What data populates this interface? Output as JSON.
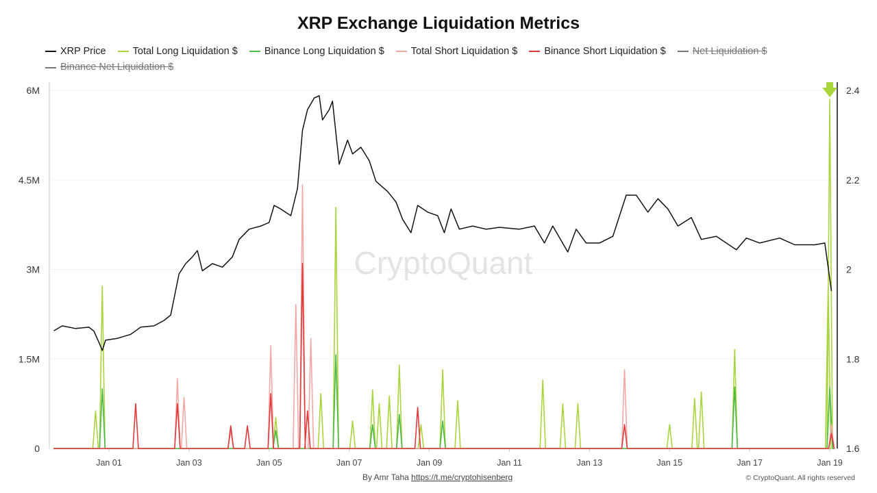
{
  "chart_data": {
    "type": "line",
    "title": "XRP Exchange Liquidation Metrics",
    "legend_position": "top",
    "grid": true,
    "left_axis": {
      "range": [
        0,
        6000000
      ],
      "ticks": [
        "0",
        "1.5M",
        "3M",
        "4.5M",
        "6M"
      ]
    },
    "right_axis": {
      "range": [
        1.6,
        2.4
      ],
      "ticks": [
        "1.6",
        "1.8",
        "2",
        "2.2",
        "2.4"
      ]
    },
    "x_axis": {
      "ticks": [
        "Jan 01",
        "Jan 03",
        "Jan 05",
        "Jan 07",
        "Jan 09",
        "Jan 11",
        "Jan 13",
        "Jan 15",
        "Jan 17",
        "Jan 19"
      ]
    },
    "series": [
      {
        "name": "XRP Price",
        "color": "#111111",
        "axis": "right",
        "hidden": false,
        "points": [
          [
            "12-30 15:00",
            1.863
          ],
          [
            "12-30 20:00",
            1.874
          ],
          [
            "12-31 04:00",
            1.868
          ],
          [
            "12-31 12:00",
            1.871
          ],
          [
            "12-31 15:00",
            1.862
          ],
          [
            "12-31 18:00",
            1.837
          ],
          [
            "12-31 20:00",
            1.819
          ],
          [
            "12-31 22:00",
            1.842
          ],
          [
            "01-01 05:00",
            1.846
          ],
          [
            "01-01 13:00",
            1.855
          ],
          [
            "01-01 19:00",
            1.871
          ],
          [
            "01-02 03:00",
            1.874
          ],
          [
            "01-02 09:00",
            1.886
          ],
          [
            "01-02 13:00",
            1.898
          ],
          [
            "01-02 18:00",
            1.99
          ],
          [
            "01-02 22:00",
            2.013
          ],
          [
            "01-03 02:00",
            2.028
          ],
          [
            "01-03 05:00",
            2.042
          ],
          [
            "01-03 08:00",
            1.997
          ],
          [
            "01-03 14:00",
            2.013
          ],
          [
            "01-03 20:00",
            2.005
          ],
          [
            "01-04 02:00",
            2.028
          ],
          [
            "01-04 06:00",
            2.067
          ],
          [
            "01-04 12:00",
            2.09
          ],
          [
            "01-04 19:00",
            2.097
          ],
          [
            "01-05 00:00",
            2.105
          ],
          [
            "01-05 03:00",
            2.143
          ],
          [
            "01-05 07:00",
            2.135
          ],
          [
            "01-05 13:00",
            2.12
          ],
          [
            "01-05 17:00",
            2.181
          ],
          [
            "01-05 20:00",
            2.311
          ],
          [
            "01-05 23:00",
            2.357
          ],
          [
            "01-06 03:00",
            2.383
          ],
          [
            "01-06 06:00",
            2.388
          ],
          [
            "01-06 08:00",
            2.334
          ],
          [
            "01-06 12:00",
            2.357
          ],
          [
            "01-06 14:00",
            2.376
          ],
          [
            "01-06 18:00",
            2.235
          ],
          [
            "01-06 23:00",
            2.289
          ],
          [
            "01-07 02:00",
            2.258
          ],
          [
            "01-07 07:00",
            2.273
          ],
          [
            "01-07 12:00",
            2.243
          ],
          [
            "01-07 16:00",
            2.197
          ],
          [
            "01-07 23:00",
            2.174
          ],
          [
            "01-08 04:00",
            2.151
          ],
          [
            "01-08 08:00",
            2.112
          ],
          [
            "01-08 13:00",
            2.082
          ],
          [
            "01-08 17:00",
            2.143
          ],
          [
            "01-08 23:00",
            2.128
          ],
          [
            "01-09 05:00",
            2.12
          ],
          [
            "01-09 09:00",
            2.082
          ],
          [
            "01-09 13:00",
            2.135
          ],
          [
            "01-09 18:00",
            2.09
          ],
          [
            "01-10 02:00",
            2.097
          ],
          [
            "01-10 10:00",
            2.09
          ],
          [
            "01-10 18:00",
            2.094
          ],
          [
            "01-11 06:00",
            2.09
          ],
          [
            "01-11 15:00",
            2.097
          ],
          [
            "01-11 21:00",
            2.059
          ],
          [
            "01-12 02:00",
            2.097
          ],
          [
            "01-12 11:00",
            2.039
          ],
          [
            "01-12 16:00",
            2.09
          ],
          [
            "01-12 22:00",
            2.059
          ],
          [
            "01-13 06:00",
            2.059
          ],
          [
            "01-13 14:00",
            2.074
          ],
          [
            "01-13 22:00",
            2.166
          ],
          [
            "01-14 04:00",
            2.166
          ],
          [
            "01-14 11:00",
            2.128
          ],
          [
            "01-14 17:00",
            2.158
          ],
          [
            "01-14 23:00",
            2.135
          ],
          [
            "01-15 05:00",
            2.097
          ],
          [
            "01-15 13:00",
            2.116
          ],
          [
            "01-15 19:00",
            2.067
          ],
          [
            "01-16 04:00",
            2.074
          ],
          [
            "01-16 16:00",
            2.044
          ],
          [
            "01-16 22:00",
            2.07
          ],
          [
            "01-17 06:00",
            2.059
          ],
          [
            "01-17 18:00",
            2.07
          ],
          [
            "01-18 03:00",
            2.055
          ],
          [
            "01-18 15:00",
            2.055
          ],
          [
            "01-18 21:00",
            2.059
          ],
          [
            "01-19 01:00",
            1.952
          ]
        ]
      },
      {
        "name": "Total Long Liquidation $",
        "color": "#a8d43c",
        "axis": "left",
        "hidden": false,
        "points": [
          [
            "12-31 16:00",
            630000
          ],
          [
            "12-31 20:00",
            2720000
          ],
          [
            "01-05 04:00",
            520000
          ],
          [
            "01-06 07:00",
            920000
          ],
          [
            "01-06 16:00",
            4040000
          ],
          [
            "01-07 02:00",
            460000
          ],
          [
            "01-07 14:00",
            980000
          ],
          [
            "01-07 18:00",
            750000
          ],
          [
            "01-08 00:00",
            880000
          ],
          [
            "01-08 06:00",
            1400000
          ],
          [
            "01-08 19:00",
            400000
          ],
          [
            "01-09 08:00",
            1320000
          ],
          [
            "01-09 17:00",
            800000
          ],
          [
            "01-11 20:00",
            1150000
          ],
          [
            "01-12 08:00",
            750000
          ],
          [
            "01-12 17:00",
            750000
          ],
          [
            "01-15 00:00",
            400000
          ],
          [
            "01-15 15:00",
            840000
          ],
          [
            "01-15 19:00",
            950000
          ],
          [
            "01-16 15:00",
            1660000
          ],
          [
            "01-18 23:00",
            2700000
          ],
          [
            "01-19 00:00",
            5850000
          ]
        ]
      },
      {
        "name": "Binance Long Liquidation $",
        "color": "#4cb848",
        "axis": "left",
        "hidden": false,
        "points": [
          [
            "12-31 20:00",
            1000000
          ],
          [
            "01-05 04:00",
            300000
          ],
          [
            "01-06 16:00",
            1570000
          ],
          [
            "01-07 14:00",
            400000
          ],
          [
            "01-08 06:00",
            570000
          ],
          [
            "01-09 08:00",
            460000
          ],
          [
            "01-16 15:00",
            1030000
          ],
          [
            "01-19 00:00",
            1030000
          ]
        ]
      },
      {
        "name": "Total Short Liquidation $",
        "color": "#f2a7a4",
        "axis": "left",
        "hidden": false,
        "points": [
          [
            "01-02 17:00",
            1170000
          ],
          [
            "01-02 21:00",
            860000
          ],
          [
            "01-04 01:00",
            300000
          ],
          [
            "01-05 01:00",
            1720000
          ],
          [
            "01-05 16:00",
            2410000
          ],
          [
            "01-05 20:00",
            4420000
          ],
          [
            "01-06 01:00",
            1840000
          ],
          [
            "01-13 21:00",
            1320000
          ],
          [
            "01-19 01:00",
            400000
          ]
        ]
      },
      {
        "name": "Binance Short Liquidation $",
        "color": "#e0393b",
        "axis": "left",
        "hidden": false,
        "points": [
          [
            "01-01 16:00",
            750000
          ],
          [
            "01-02 17:00",
            750000
          ],
          [
            "01-04 01:00",
            380000
          ],
          [
            "01-04 11:00",
            380000
          ],
          [
            "01-05 01:00",
            920000
          ],
          [
            "01-05 20:00",
            3100000
          ],
          [
            "01-05 23:00",
            630000
          ],
          [
            "01-08 17:00",
            690000
          ],
          [
            "01-13 21:00",
            400000
          ],
          [
            "01-19 01:00",
            250000
          ]
        ]
      },
      {
        "name": "Net Liquidation $",
        "color": "#777777",
        "axis": "left",
        "hidden": true,
        "points": []
      },
      {
        "name": "Binance Net Liquidation $",
        "color": "#777777",
        "axis": "left",
        "hidden": true,
        "points": []
      }
    ],
    "annotation": {
      "type": "down-arrow",
      "at": "01-19 00:00",
      "color": "#a8d43c"
    }
  },
  "watermark": "CryptoQuant",
  "footer": {
    "by": "By Amr Taha",
    "link": "https://t.me/cryptohisenberg",
    "copyright": "© CryptoQuant. All rights reserved"
  }
}
